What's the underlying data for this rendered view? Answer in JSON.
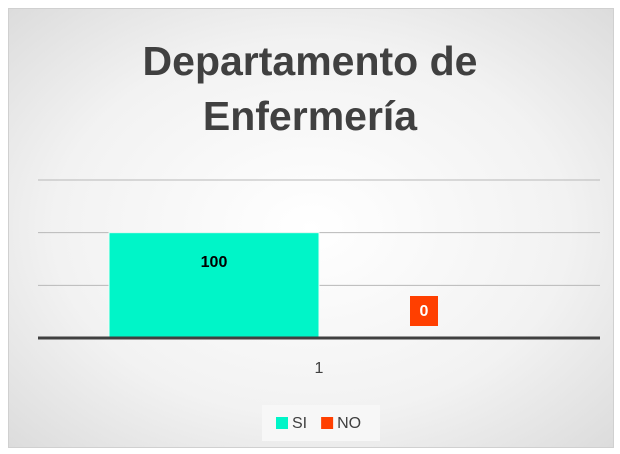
{
  "chart_data": {
    "type": "bar",
    "title": "Departamento de Enfermería",
    "categories": [
      "1"
    ],
    "series": [
      {
        "name": "SI",
        "color": "#00f5c8",
        "values": [
          100
        ]
      },
      {
        "name": "NO",
        "color": "#ff3f00",
        "values": [
          0
        ]
      }
    ],
    "ylim": [
      0,
      150
    ],
    "yticks": [
      0,
      50,
      100,
      150
    ],
    "grid": true,
    "legend": "bottom"
  }
}
